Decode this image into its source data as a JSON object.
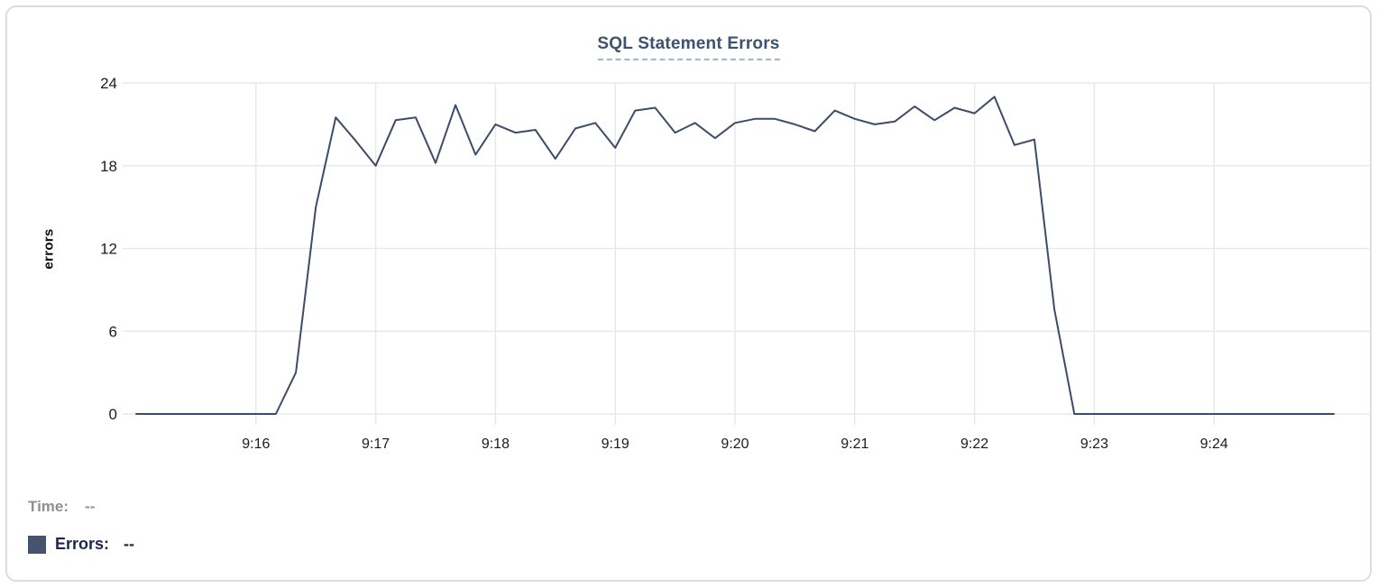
{
  "panel": {
    "title": "SQL Statement Errors"
  },
  "chart_data": {
    "type": "line",
    "title": "SQL Statement Errors",
    "xlabel": "",
    "ylabel": "errors",
    "ylim": [
      0,
      24
    ],
    "yticks": [
      0,
      6,
      12,
      18,
      24
    ],
    "xticks": [
      "9:16",
      "9:17",
      "9:18",
      "9:19",
      "9:20",
      "9:21",
      "9:22",
      "9:23",
      "9:24"
    ],
    "x_range": [
      "9:15:00",
      "9:25:00"
    ],
    "grid": true,
    "legend_position": "bottom-left-readout",
    "x": [
      "9:15:00",
      "9:15:10",
      "9:15:20",
      "9:15:30",
      "9:15:40",
      "9:15:50",
      "9:16:00",
      "9:16:10",
      "9:16:20",
      "9:16:30",
      "9:16:40",
      "9:16:50",
      "9:17:00",
      "9:17:10",
      "9:17:20",
      "9:17:30",
      "9:17:40",
      "9:17:50",
      "9:18:00",
      "9:18:10",
      "9:18:20",
      "9:18:30",
      "9:18:40",
      "9:18:50",
      "9:19:00",
      "9:19:10",
      "9:19:20",
      "9:19:30",
      "9:19:40",
      "9:19:50",
      "9:20:00",
      "9:20:10",
      "9:20:20",
      "9:20:30",
      "9:20:40",
      "9:20:50",
      "9:21:00",
      "9:21:10",
      "9:21:20",
      "9:21:30",
      "9:21:40",
      "9:21:50",
      "9:22:00",
      "9:22:10",
      "9:22:20",
      "9:22:30",
      "9:22:40",
      "9:22:50",
      "9:23:00",
      "9:23:10",
      "9:23:20",
      "9:23:30",
      "9:23:40",
      "9:23:50",
      "9:24:00",
      "9:24:10",
      "9:24:20",
      "9:24:30",
      "9:24:40",
      "9:24:50",
      "9:25:00"
    ],
    "series": [
      {
        "name": "Errors",
        "color": "#3d4c69",
        "values": [
          0,
          0,
          0,
          0,
          0,
          0,
          0,
          0,
          3,
          15,
          21.5,
          19.8,
          18,
          21.3,
          21.5,
          18.2,
          22.4,
          18.8,
          21,
          20.4,
          20.6,
          18.5,
          20.7,
          21.1,
          19.3,
          22,
          22.2,
          20.4,
          21.1,
          20,
          21.1,
          21.4,
          21.4,
          21,
          20.5,
          22,
          21.4,
          21,
          21.2,
          22.3,
          21.3,
          22.2,
          21.8,
          23,
          19.5,
          19.9,
          7.6,
          0,
          0,
          0,
          0,
          0,
          0,
          0,
          0,
          0,
          0,
          0,
          0,
          0,
          0
        ]
      }
    ]
  },
  "legend": {
    "rows": [
      {
        "label": "Time:",
        "value": "--"
      },
      {
        "label": "Errors:",
        "value": "--",
        "swatch_color": "#46536f"
      }
    ]
  },
  "colors": {
    "line": "#3d4c69",
    "grid": "#e9e9ec",
    "tick_text": "#1c1c1e",
    "title": "#3b536e",
    "title_underline": "#a4b4cb",
    "muted_text": "#8e8e93",
    "dark_navy_text": "#1c2752",
    "panel_border": "#dcdce1"
  }
}
